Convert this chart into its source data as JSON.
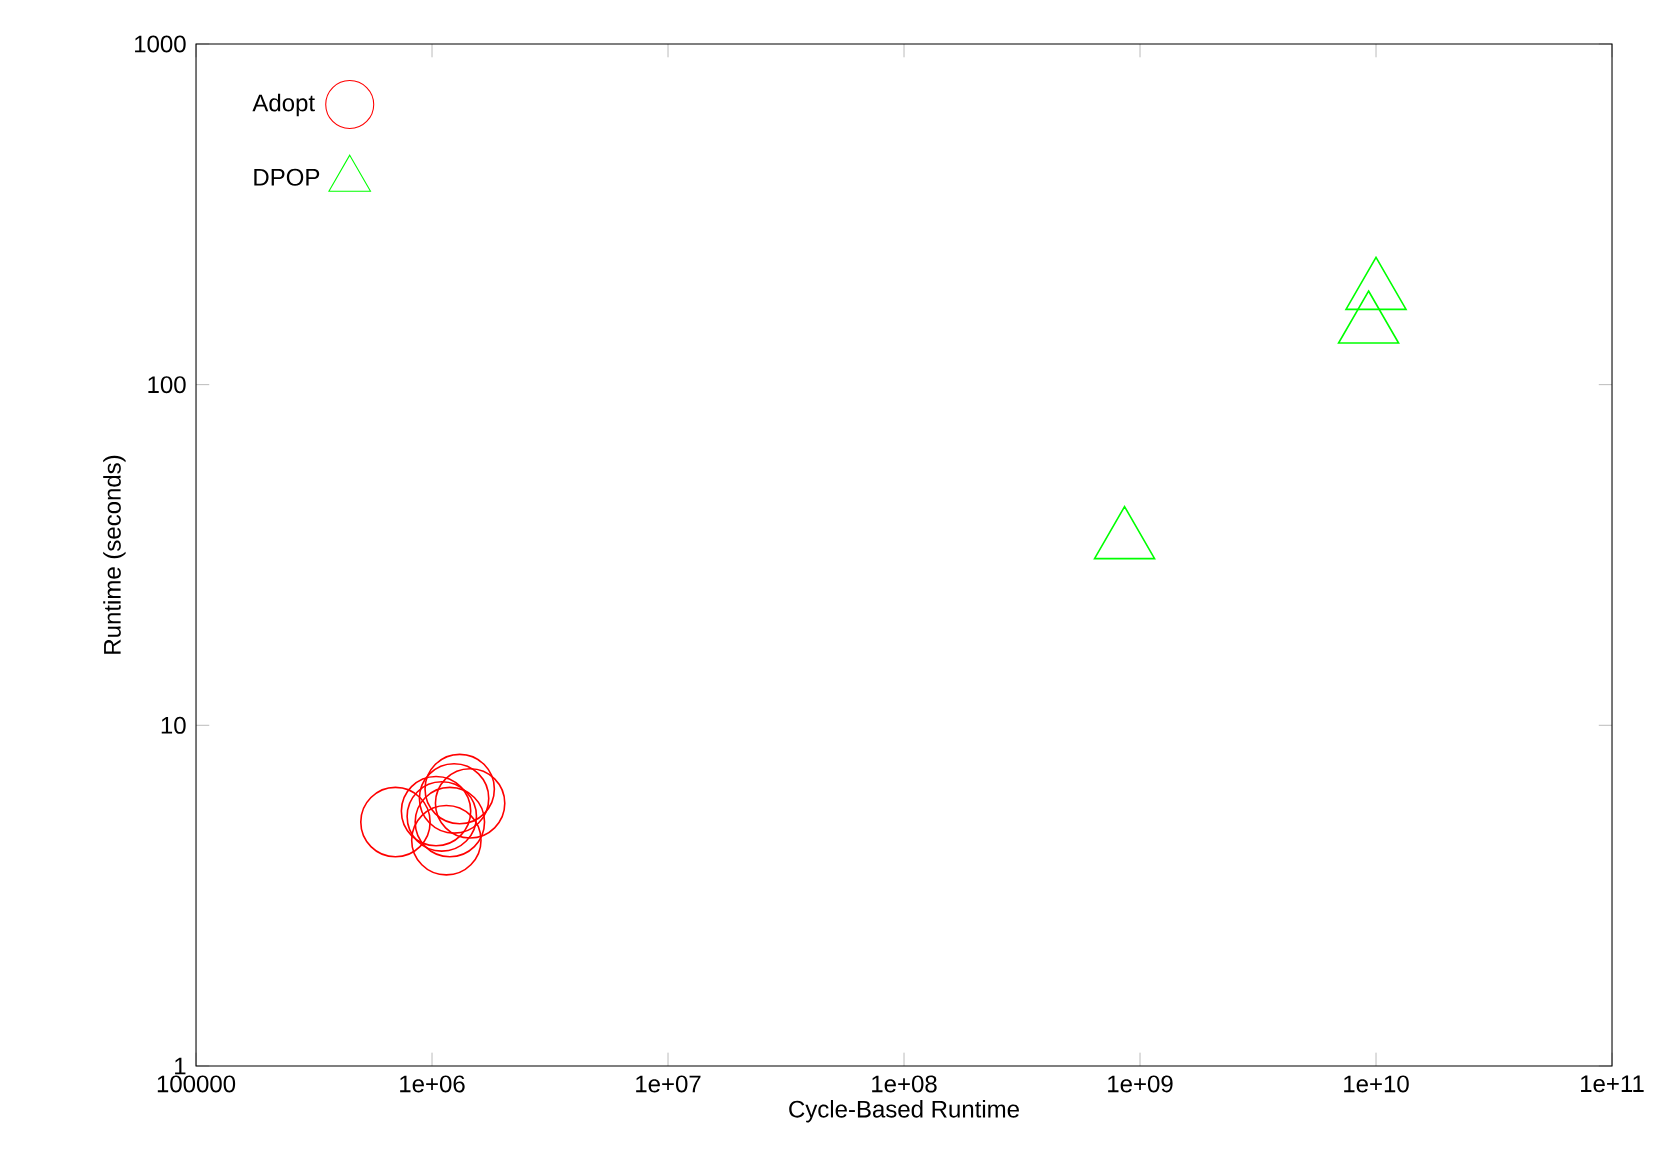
{
  "chart_data": {
    "type": "scatter",
    "xlabel": "Cycle-Based Runtime",
    "ylabel": "Runtime (seconds)",
    "log": "xy",
    "legend": "top left",
    "grid": false,
    "xlim": [
      100000,
      100000000000
    ],
    "ylim": [
      1,
      1000
    ],
    "xticks": [
      100000,
      {
        "value": 1000000,
        "label": "1e+06"
      },
      {
        "value": 10000000,
        "label": "1e+07"
      },
      {
        "value": 100000000,
        "label": "1e+08"
      },
      {
        "value": 1000000000,
        "label": "1e+09"
      },
      {
        "value": 10000000000,
        "label": "1e+10"
      },
      {
        "value": 100000000000,
        "label": "1e+11"
      }
    ],
    "yticks": [
      1,
      10,
      100,
      1000
    ],
    "series": [
      {
        "name": "Adopt",
        "color": "#ff0000",
        "marker": "circle",
        "x": [
          700000,
          1150000,
          1040000,
          1240000,
          1450000,
          1190000,
          1310000,
          1100000
        ],
        "values": [
          5.2,
          4.6,
          5.6,
          6.1,
          5.9,
          5.2,
          6.5,
          5.4
        ]
      },
      {
        "name": "DPOP",
        "color": "#00ff00",
        "marker": "triangle",
        "x": [
          860000000,
          9300000000,
          10000000000
        ],
        "values": [
          34.7,
          149,
          187
        ]
      }
    ]
  }
}
